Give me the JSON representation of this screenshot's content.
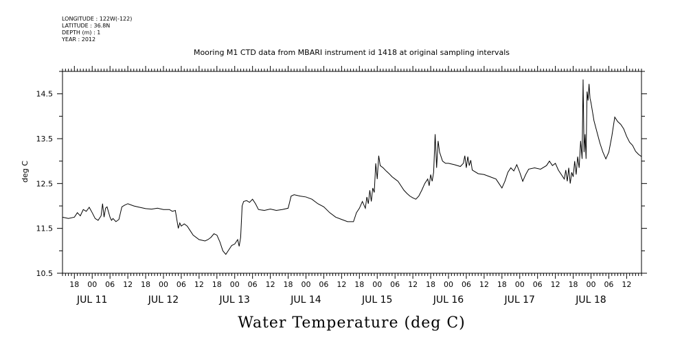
{
  "header": {
    "meta_lines": [
      "LONGITUDE : 122W(-122)",
      "LATITUDE : 36.8N",
      "DEPTH (m) : 1",
      "YEAR : 2012"
    ],
    "title": "Mooring M1 CTD data from MBARI instrument id 1418 at original sampling intervals"
  },
  "chart_data": {
    "type": "line",
    "title": "Mooring M1 CTD data from MBARI instrument id 1418 at original sampling intervals",
    "xlabel": "Water Temperature (deg C)",
    "ylabel": "deg C",
    "xlim": [
      "2012-07-10T14:00",
      "2012-07-18T17:00"
    ],
    "ylim": [
      10.5,
      15.0
    ],
    "y_ticks": [
      10.5,
      11.5,
      12.5,
      13.5,
      14.5
    ],
    "y_tick_labels": [
      "10.5",
      "11.5",
      "12.5",
      "13.5",
      "14.5"
    ],
    "x_hour_ticks": [
      {
        "t": "2012-07-10T18:00",
        "label": "18"
      },
      {
        "t": "2012-07-11T00:00",
        "label": "00"
      },
      {
        "t": "2012-07-11T06:00",
        "label": "06"
      },
      {
        "t": "2012-07-11T12:00",
        "label": "12"
      },
      {
        "t": "2012-07-11T18:00",
        "label": "18"
      },
      {
        "t": "2012-07-12T00:00",
        "label": "00"
      },
      {
        "t": "2012-07-12T06:00",
        "label": "06"
      },
      {
        "t": "2012-07-12T12:00",
        "label": "12"
      },
      {
        "t": "2012-07-12T18:00",
        "label": "18"
      },
      {
        "t": "2012-07-13T00:00",
        "label": "00"
      },
      {
        "t": "2012-07-13T06:00",
        "label": "06"
      },
      {
        "t": "2012-07-13T12:00",
        "label": "12"
      },
      {
        "t": "2012-07-13T18:00",
        "label": "18"
      },
      {
        "t": "2012-07-14T00:00",
        "label": "00"
      },
      {
        "t": "2012-07-14T06:00",
        "label": "06"
      },
      {
        "t": "2012-07-14T12:00",
        "label": "12"
      },
      {
        "t": "2012-07-14T18:00",
        "label": "18"
      },
      {
        "t": "2012-07-15T00:00",
        "label": "00"
      },
      {
        "t": "2012-07-15T06:00",
        "label": "06"
      },
      {
        "t": "2012-07-15T12:00",
        "label": "12"
      },
      {
        "t": "2012-07-15T18:00",
        "label": "18"
      },
      {
        "t": "2012-07-16T00:00",
        "label": "00"
      },
      {
        "t": "2012-07-16T06:00",
        "label": "06"
      },
      {
        "t": "2012-07-16T12:00",
        "label": "12"
      },
      {
        "t": "2012-07-16T18:00",
        "label": "18"
      },
      {
        "t": "2012-07-17T00:00",
        "label": "00"
      },
      {
        "t": "2012-07-17T06:00",
        "label": "06"
      },
      {
        "t": "2012-07-17T12:00",
        "label": "12"
      },
      {
        "t": "2012-07-17T18:00",
        "label": "18"
      },
      {
        "t": "2012-07-18T00:00",
        "label": "00"
      },
      {
        "t": "2012-07-18T06:00",
        "label": "06"
      },
      {
        "t": "2012-07-18T12:00",
        "label": "12"
      }
    ],
    "x_day_labels": [
      {
        "t": "2012-07-11T00:00",
        "label": "JUL 11"
      },
      {
        "t": "2012-07-12T00:00",
        "label": "JUL 12"
      },
      {
        "t": "2012-07-13T00:00",
        "label": "JUL 13"
      },
      {
        "t": "2012-07-14T00:00",
        "label": "JUL 14"
      },
      {
        "t": "2012-07-15T00:00",
        "label": "JUL 15"
      },
      {
        "t": "2012-07-16T00:00",
        "label": "JUL 16"
      },
      {
        "t": "2012-07-17T00:00",
        "label": "JUL 17"
      },
      {
        "t": "2012-07-18T00:00",
        "label": "JUL 18"
      }
    ],
    "grid": false,
    "series": [
      {
        "color": "#000000",
        "points": [
          [
            "2012-07-10T14:00",
            11.75
          ],
          [
            "2012-07-10T16:00",
            11.72
          ],
          [
            "2012-07-10T18:00",
            11.75
          ],
          [
            "2012-07-10T19:00",
            11.85
          ],
          [
            "2012-07-10T20:00",
            11.78
          ],
          [
            "2012-07-10T21:00",
            11.92
          ],
          [
            "2012-07-10T22:00",
            11.88
          ],
          [
            "2012-07-10T23:00",
            11.97
          ],
          [
            "2012-07-11T00:00",
            11.85
          ],
          [
            "2012-07-11T01:00",
            11.72
          ],
          [
            "2012-07-11T02:00",
            11.68
          ],
          [
            "2012-07-11T03:00",
            11.78
          ],
          [
            "2012-07-11T03:30",
            12.05
          ],
          [
            "2012-07-11T04:00",
            11.75
          ],
          [
            "2012-07-11T04:30",
            11.95
          ],
          [
            "2012-07-11T05:00",
            11.98
          ],
          [
            "2012-07-11T06:00",
            11.75
          ],
          [
            "2012-07-11T06:30",
            11.68
          ],
          [
            "2012-07-11T07:00",
            11.72
          ],
          [
            "2012-07-11T08:00",
            11.65
          ],
          [
            "2012-07-11T09:00",
            11.7
          ],
          [
            "2012-07-11T10:00",
            11.98
          ],
          [
            "2012-07-11T11:00",
            12.02
          ],
          [
            "2012-07-11T12:00",
            12.05
          ],
          [
            "2012-07-11T14:00",
            12.0
          ],
          [
            "2012-07-11T16:00",
            11.97
          ],
          [
            "2012-07-11T18:00",
            11.94
          ],
          [
            "2012-07-11T20:00",
            11.93
          ],
          [
            "2012-07-11T22:00",
            11.95
          ],
          [
            "2012-07-12T00:00",
            11.92
          ],
          [
            "2012-07-12T02:00",
            11.92
          ],
          [
            "2012-07-12T03:00",
            11.88
          ],
          [
            "2012-07-12T04:00",
            11.9
          ],
          [
            "2012-07-12T05:00",
            11.5
          ],
          [
            "2012-07-12T05:30",
            11.62
          ],
          [
            "2012-07-12T06:00",
            11.55
          ],
          [
            "2012-07-12T07:00",
            11.6
          ],
          [
            "2012-07-12T08:00",
            11.55
          ],
          [
            "2012-07-12T09:00",
            11.45
          ],
          [
            "2012-07-12T10:00",
            11.35
          ],
          [
            "2012-07-12T12:00",
            11.25
          ],
          [
            "2012-07-12T14:00",
            11.22
          ],
          [
            "2012-07-12T15:00",
            11.25
          ],
          [
            "2012-07-12T16:00",
            11.3
          ],
          [
            "2012-07-12T17:00",
            11.38
          ],
          [
            "2012-07-12T18:00",
            11.35
          ],
          [
            "2012-07-12T19:00",
            11.2
          ],
          [
            "2012-07-12T20:00",
            11.0
          ],
          [
            "2012-07-12T21:00",
            10.92
          ],
          [
            "2012-07-12T22:00",
            11.02
          ],
          [
            "2012-07-12T23:00",
            11.12
          ],
          [
            "2012-07-13T00:00",
            11.15
          ],
          [
            "2012-07-13T01:00",
            11.25
          ],
          [
            "2012-07-13T01:30",
            11.1
          ],
          [
            "2012-07-13T02:00",
            11.3
          ],
          [
            "2012-07-13T02:30",
            12.0
          ],
          [
            "2012-07-13T03:00",
            12.1
          ],
          [
            "2012-07-13T04:00",
            12.12
          ],
          [
            "2012-07-13T05:00",
            12.08
          ],
          [
            "2012-07-13T06:00",
            12.15
          ],
          [
            "2012-07-13T07:00",
            12.05
          ],
          [
            "2012-07-13T08:00",
            11.92
          ],
          [
            "2012-07-13T10:00",
            11.9
          ],
          [
            "2012-07-13T12:00",
            11.93
          ],
          [
            "2012-07-13T14:00",
            11.9
          ],
          [
            "2012-07-13T16:00",
            11.92
          ],
          [
            "2012-07-13T18:00",
            11.95
          ],
          [
            "2012-07-13T19:00",
            12.22
          ],
          [
            "2012-07-13T20:00",
            12.25
          ],
          [
            "2012-07-13T22:00",
            12.22
          ],
          [
            "2012-07-14T00:00",
            12.2
          ],
          [
            "2012-07-14T02:00",
            12.15
          ],
          [
            "2012-07-14T04:00",
            12.05
          ],
          [
            "2012-07-14T06:00",
            11.98
          ],
          [
            "2012-07-14T08:00",
            11.85
          ],
          [
            "2012-07-14T10:00",
            11.75
          ],
          [
            "2012-07-14T12:00",
            11.7
          ],
          [
            "2012-07-14T14:00",
            11.65
          ],
          [
            "2012-07-14T16:00",
            11.65
          ],
          [
            "2012-07-14T17:00",
            11.85
          ],
          [
            "2012-07-14T18:00",
            11.95
          ],
          [
            "2012-07-14T19:00",
            12.1
          ],
          [
            "2012-07-14T20:00",
            11.95
          ],
          [
            "2012-07-14T20:30",
            12.2
          ],
          [
            "2012-07-14T21:00",
            12.05
          ],
          [
            "2012-07-14T21:30",
            12.35
          ],
          [
            "2012-07-14T22:00",
            12.1
          ],
          [
            "2012-07-14T22:30",
            12.4
          ],
          [
            "2012-07-14T23:00",
            12.3
          ],
          [
            "2012-07-14T23:30",
            12.95
          ],
          [
            "2012-07-15T00:00",
            12.6
          ],
          [
            "2012-07-15T00:30",
            13.12
          ],
          [
            "2012-07-15T01:00",
            12.9
          ],
          [
            "2012-07-15T02:00",
            12.85
          ],
          [
            "2012-07-15T03:00",
            12.78
          ],
          [
            "2012-07-15T04:00",
            12.72
          ],
          [
            "2012-07-15T05:00",
            12.65
          ],
          [
            "2012-07-15T06:00",
            12.6
          ],
          [
            "2012-07-15T07:00",
            12.55
          ],
          [
            "2012-07-15T08:00",
            12.45
          ],
          [
            "2012-07-15T09:00",
            12.35
          ],
          [
            "2012-07-15T10:00",
            12.28
          ],
          [
            "2012-07-15T11:00",
            12.22
          ],
          [
            "2012-07-15T12:00",
            12.18
          ],
          [
            "2012-07-15T13:00",
            12.15
          ],
          [
            "2012-07-15T14:00",
            12.22
          ],
          [
            "2012-07-15T15:00",
            12.35
          ],
          [
            "2012-07-15T16:00",
            12.5
          ],
          [
            "2012-07-15T17:00",
            12.6
          ],
          [
            "2012-07-15T17:30",
            12.45
          ],
          [
            "2012-07-15T18:00",
            12.7
          ],
          [
            "2012-07-15T18:30",
            12.55
          ],
          [
            "2012-07-15T19:00",
            12.75
          ],
          [
            "2012-07-15T19:30",
            13.6
          ],
          [
            "2012-07-15T20:00",
            12.85
          ],
          [
            "2012-07-15T20:30",
            13.45
          ],
          [
            "2012-07-15T21:00",
            13.2
          ],
          [
            "2012-07-15T22:00",
            13.0
          ],
          [
            "2012-07-15T23:00",
            12.95
          ],
          [
            "2012-07-16T00:00",
            12.95
          ],
          [
            "2012-07-16T02:00",
            12.92
          ],
          [
            "2012-07-16T04:00",
            12.88
          ],
          [
            "2012-07-16T05:00",
            12.95
          ],
          [
            "2012-07-16T05:30",
            13.12
          ],
          [
            "2012-07-16T06:00",
            12.85
          ],
          [
            "2012-07-16T06:30",
            13.1
          ],
          [
            "2012-07-16T07:00",
            12.9
          ],
          [
            "2012-07-16T07:30",
            13.02
          ],
          [
            "2012-07-16T08:00",
            12.8
          ],
          [
            "2012-07-16T10:00",
            12.72
          ],
          [
            "2012-07-16T12:00",
            12.7
          ],
          [
            "2012-07-16T14:00",
            12.65
          ],
          [
            "2012-07-16T16:00",
            12.6
          ],
          [
            "2012-07-16T17:00",
            12.5
          ],
          [
            "2012-07-16T18:00",
            12.4
          ],
          [
            "2012-07-16T19:00",
            12.55
          ],
          [
            "2012-07-16T20:00",
            12.75
          ],
          [
            "2012-07-16T21:00",
            12.85
          ],
          [
            "2012-07-16T22:00",
            12.78
          ],
          [
            "2012-07-16T23:00",
            12.92
          ],
          [
            "2012-07-17T00:00",
            12.75
          ],
          [
            "2012-07-17T01:00",
            12.55
          ],
          [
            "2012-07-17T02:00",
            12.7
          ],
          [
            "2012-07-17T03:00",
            12.82
          ],
          [
            "2012-07-17T05:00",
            12.85
          ],
          [
            "2012-07-17T07:00",
            12.82
          ],
          [
            "2012-07-17T09:00",
            12.9
          ],
          [
            "2012-07-17T10:00",
            13.0
          ],
          [
            "2012-07-17T11:00",
            12.9
          ],
          [
            "2012-07-17T12:00",
            12.95
          ],
          [
            "2012-07-17T13:00",
            12.8
          ],
          [
            "2012-07-17T14:00",
            12.7
          ],
          [
            "2012-07-17T15:00",
            12.6
          ],
          [
            "2012-07-17T15:30",
            12.8
          ],
          [
            "2012-07-17T16:00",
            12.55
          ],
          [
            "2012-07-17T16:30",
            12.85
          ],
          [
            "2012-07-17T17:00",
            12.5
          ],
          [
            "2012-07-17T17:30",
            12.75
          ],
          [
            "2012-07-17T18:00",
            12.65
          ],
          [
            "2012-07-17T18:30",
            13.0
          ],
          [
            "2012-07-17T19:00",
            12.7
          ],
          [
            "2012-07-17T19:30",
            13.1
          ],
          [
            "2012-07-17T20:00",
            12.85
          ],
          [
            "2012-07-17T20:30",
            13.45
          ],
          [
            "2012-07-17T21:00",
            13.05
          ],
          [
            "2012-07-17T21:20",
            14.82
          ],
          [
            "2012-07-17T21:40",
            13.2
          ],
          [
            "2012-07-17T22:00",
            13.6
          ],
          [
            "2012-07-17T22:20",
            13.05
          ],
          [
            "2012-07-17T22:40",
            14.55
          ],
          [
            "2012-07-17T23:00",
            14.35
          ],
          [
            "2012-07-17T23:20",
            14.72
          ],
          [
            "2012-07-17T23:40",
            14.4
          ],
          [
            "2012-07-18T00:00",
            14.3
          ],
          [
            "2012-07-18T01:00",
            13.9
          ],
          [
            "2012-07-18T02:00",
            13.65
          ],
          [
            "2012-07-18T03:00",
            13.4
          ],
          [
            "2012-07-18T04:00",
            13.2
          ],
          [
            "2012-07-18T05:00",
            13.05
          ],
          [
            "2012-07-18T06:00",
            13.2
          ],
          [
            "2012-07-18T07:00",
            13.55
          ],
          [
            "2012-07-18T08:00",
            13.98
          ],
          [
            "2012-07-18T09:00",
            13.88
          ],
          [
            "2012-07-18T10:00",
            13.82
          ],
          [
            "2012-07-18T11:00",
            13.72
          ],
          [
            "2012-07-18T12:00",
            13.55
          ],
          [
            "2012-07-18T13:00",
            13.42
          ],
          [
            "2012-07-18T14:00",
            13.35
          ],
          [
            "2012-07-18T15:00",
            13.22
          ],
          [
            "2012-07-18T16:00",
            13.15
          ],
          [
            "2012-07-18T17:00",
            13.1
          ]
        ]
      }
    ]
  }
}
